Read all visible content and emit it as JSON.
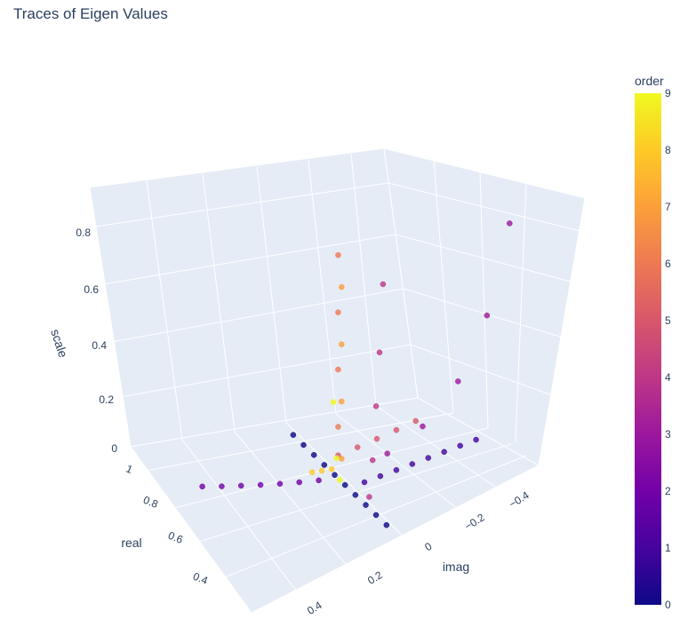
{
  "chart_data": {
    "type": "scatter3d",
    "title": "Traces of Eigen Values",
    "axes": {
      "x": {
        "label": "imag",
        "ticks": [
          "−0.4",
          "−0.2",
          "0",
          "0.2",
          "0.4"
        ]
      },
      "y": {
        "label": "real",
        "ticks": [
          "1",
          "0.8",
          "0.6",
          "0.4"
        ]
      },
      "z": {
        "label": "scale",
        "ticks": [
          "0",
          "0.2",
          "0.4",
          "0.6",
          "0.8"
        ]
      }
    },
    "colorbar": {
      "title": "order",
      "range": [
        0,
        9
      ],
      "ticks": [
        "0",
        "1",
        "2",
        "3",
        "4",
        "5",
        "6",
        "7",
        "8",
        "9"
      ],
      "colorscale": "Plasma"
    },
    "traces": [
      {
        "order": 0,
        "points": [
          [
            0,
            1.0,
            0.02
          ],
          [
            0,
            0.94,
            0.02
          ],
          [
            0,
            0.88,
            0.02
          ],
          [
            0,
            0.82,
            0.02
          ],
          [
            0,
            0.76,
            0.02
          ],
          [
            0,
            0.7,
            0.02
          ],
          [
            0,
            0.64,
            0.02
          ],
          [
            0,
            0.58,
            0.02
          ],
          [
            0,
            0.52,
            0.02
          ],
          [
            0,
            0.46,
            0.02
          ]
        ]
      },
      {
        "order": 1,
        "points": [
          [
            -0.05,
            0.78,
            0.02
          ],
          [
            -0.1,
            0.78,
            0.02
          ],
          [
            -0.15,
            0.78,
            0.02
          ],
          [
            -0.2,
            0.78,
            0.02
          ],
          [
            -0.25,
            0.78,
            0.02
          ],
          [
            -0.3,
            0.78,
            0.02
          ],
          [
            -0.35,
            0.78,
            0.02
          ],
          [
            -0.4,
            0.78,
            0.02
          ]
        ]
      },
      {
        "order": 2,
        "points": [
          [
            0.05,
            0.7,
            0.02
          ],
          [
            0.1,
            0.68,
            0.02
          ],
          [
            0.15,
            0.66,
            0.02
          ],
          [
            0.2,
            0.64,
            0.02
          ],
          [
            0.25,
            0.62,
            0.02
          ],
          [
            0.3,
            0.6,
            0.02
          ],
          [
            0.35,
            0.58,
            0.02
          ]
        ]
      },
      {
        "order": 3,
        "points": [
          [
            -0.1,
            0.82,
            0.12
          ],
          [
            -0.2,
            0.84,
            0.18
          ],
          [
            -0.3,
            0.86,
            0.3
          ],
          [
            -0.38,
            0.88,
            0.5
          ],
          [
            -0.44,
            0.9,
            0.8
          ]
        ]
      },
      {
        "order": 4,
        "points": [
          [
            0,
            0.9,
            0.06
          ],
          [
            0,
            0.92,
            0.2
          ],
          [
            0,
            0.94,
            0.4
          ],
          [
            0,
            0.96,
            0.6
          ],
          [
            0,
            0.98,
            0.85
          ]
        ]
      },
      {
        "order": 5,
        "points": [
          [
            0.0,
            0.72,
            0.1
          ],
          [
            -0.05,
            0.74,
            0.12
          ],
          [
            -0.1,
            0.76,
            0.14
          ],
          [
            -0.15,
            0.78,
            0.16
          ],
          [
            -0.2,
            0.8,
            0.18
          ]
        ]
      },
      {
        "order": 6,
        "points": [
          [
            0,
            0.72,
            0.2
          ],
          [
            0,
            0.72,
            0.4
          ],
          [
            0,
            0.72,
            0.6
          ],
          [
            0,
            0.72,
            0.8
          ]
        ]
      },
      {
        "order": 7,
        "points": [
          [
            0,
            0.74,
            0.1
          ],
          [
            0,
            0.74,
            0.3
          ],
          [
            0,
            0.74,
            0.5
          ],
          [
            0,
            0.74,
            0.7
          ]
        ]
      },
      {
        "order": 8,
        "points": [
          [
            0.02,
            0.72,
            0.06
          ],
          [
            0.04,
            0.7,
            0.05
          ],
          [
            0.06,
            0.68,
            0.04
          ]
        ]
      },
      {
        "order": 9,
        "points": [
          [
            0,
            0.73,
            0.02
          ],
          [
            0.01,
            0.73,
            0.1
          ],
          [
            0.02,
            0.73,
            0.3
          ]
        ]
      }
    ]
  }
}
